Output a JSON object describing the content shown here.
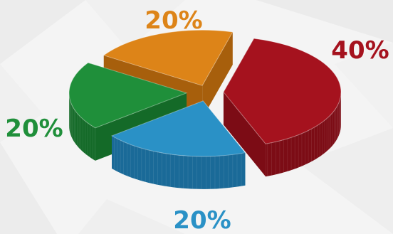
{
  "chart_data": {
    "type": "pie",
    "title": "",
    "slices": [
      {
        "label": "40%",
        "value": 40,
        "color": "#a5121e",
        "dark": "#7c0c15"
      },
      {
        "label": "20%",
        "value": 20,
        "color": "#2a91c6",
        "dark": "#1a6a98"
      },
      {
        "label": "20%",
        "value": 20,
        "color": "#1f8f3a",
        "dark": "#146a28"
      },
      {
        "label": "20%",
        "value": 20,
        "color": "#dd8418",
        "dark": "#a75f0c"
      }
    ],
    "style": "3d-exploded",
    "legend": "none"
  }
}
